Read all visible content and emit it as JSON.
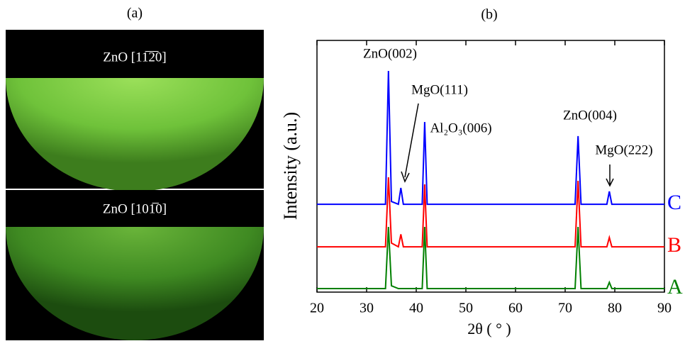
{
  "panel_a": {
    "label": "(a)",
    "images": [
      {
        "caption": "ZnO [11̅2̅0]"
      },
      {
        "caption": "ZnO [101̅0]"
      }
    ]
  },
  "chart_data": {
    "type": "line",
    "title": "(b)",
    "x_label": "2θ ( ° )",
    "y_label": "Intensity (a.u.)",
    "x": [
      20,
      33.8,
      34.4,
      35.0,
      36.4,
      36.9,
      37.4,
      41.2,
      41.7,
      42.2,
      72.0,
      72.6,
      73.2,
      78.4,
      78.9,
      79.4,
      90
    ],
    "series": [
      {
        "name": "C",
        "color": "#0000ff",
        "values": [
          34.9,
          34.9,
          87.9,
          36,
          34.9,
          41.4,
          34.9,
          34.9,
          67.6,
          34.9,
          34.9,
          62,
          34.9,
          34.9,
          40,
          34.9,
          34.9
        ]
      },
      {
        "name": "B",
        "color": "#ff0000",
        "values": [
          18,
          18,
          45.6,
          19.5,
          18,
          23,
          18,
          18,
          42.8,
          18,
          18,
          44.2,
          18,
          18,
          21.7,
          18,
          18
        ]
      },
      {
        "name": "A",
        "color": "#008000",
        "values": [
          1.4,
          1.4,
          25.9,
          2.5,
          1.4,
          1.4,
          1.4,
          1.4,
          25.9,
          1.4,
          1.4,
          25.9,
          1.4,
          1.4,
          3.9,
          1.4,
          1.4
        ]
      }
    ],
    "annotations": [
      "ZnO(002)",
      "MgO(111)",
      "Al₂O₃(006)",
      "ZnO(004)",
      "MgO(222)"
    ],
    "xlim": [
      20,
      90
    ],
    "xticks": [
      20,
      30,
      40,
      50,
      60,
      70,
      80,
      90
    ],
    "ylim": [
      0,
      100
    ]
  }
}
